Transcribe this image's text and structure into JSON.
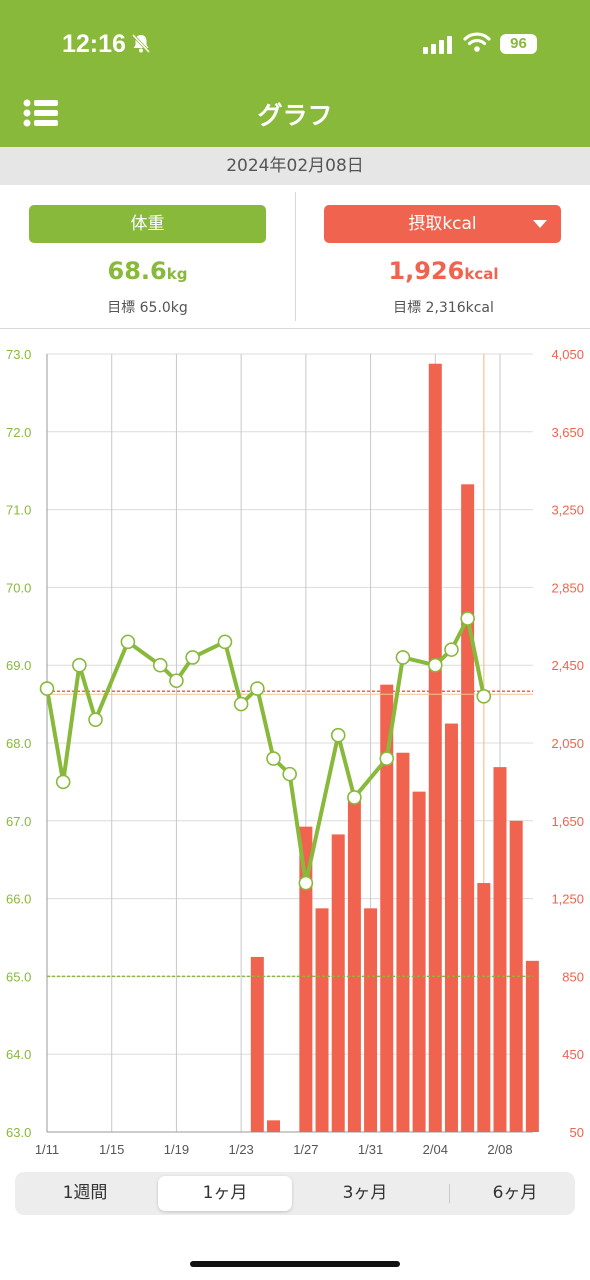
{
  "status_bar": {
    "time": "12:16",
    "battery": "96"
  },
  "header": {
    "title": "グラフ"
  },
  "date": "2024年02月08日",
  "weight_panel": {
    "label": "体重",
    "value": "68.6",
    "unit": "kg",
    "target": "目標 65.0kg"
  },
  "kcal_panel": {
    "label": "摂取kcal",
    "value": "1,926",
    "unit": "kcal",
    "target": "目標 2,316kcal"
  },
  "colors": {
    "accent_green": "#88b93b",
    "accent_red": "#f0634e"
  },
  "chart_data": {
    "type": "bar+line",
    "x_tick_labels": [
      "1/11",
      "1/15",
      "1/19",
      "1/23",
      "1/27",
      "1/31",
      "2/04",
      "2/08"
    ],
    "y_left_ticks": [
      "73.0",
      "72.0",
      "71.0",
      "70.0",
      "69.0",
      "68.0",
      "67.0",
      "66.0",
      "65.0",
      "64.0",
      "63.0"
    ],
    "y_right_ticks": [
      "4,050",
      "3,650",
      "3,250",
      "2,850",
      "2,450",
      "2,050",
      "1,650",
      "1,250",
      "850",
      "450",
      "50"
    ],
    "y_left_range": [
      63.0,
      73.0
    ],
    "y_right_range": [
      50,
      4050
    ],
    "weight_target": 65.0,
    "kcal_target": 2316,
    "weight": [
      {
        "day": "1/11",
        "value": 68.7
      },
      {
        "day": "1/12",
        "value": 67.5
      },
      {
        "day": "1/13",
        "value": 69.0
      },
      {
        "day": "1/14",
        "value": 68.3
      },
      {
        "day": "1/16",
        "value": 69.3
      },
      {
        "day": "1/18",
        "value": 69.0
      },
      {
        "day": "1/19",
        "value": 68.8
      },
      {
        "day": "1/20",
        "value": 69.1
      },
      {
        "day": "1/22",
        "value": 69.3
      },
      {
        "day": "1/23",
        "value": 68.5
      },
      {
        "day": "1/24",
        "value": 68.7
      },
      {
        "day": "1/25",
        "value": 67.8
      },
      {
        "day": "1/26",
        "value": 67.6
      },
      {
        "day": "1/27",
        "value": 66.2
      },
      {
        "day": "1/29",
        "value": 68.1
      },
      {
        "day": "1/30",
        "value": 67.3
      },
      {
        "day": "2/01",
        "value": 67.8
      },
      {
        "day": "2/02",
        "value": 69.1
      },
      {
        "day": "2/04",
        "value": 69.0
      },
      {
        "day": "2/05",
        "value": 69.2
      },
      {
        "day": "2/06",
        "value": 69.6
      },
      {
        "day": "2/07",
        "value": 68.6
      }
    ],
    "kcal": [
      {
        "day": "1/24",
        "value": 950
      },
      {
        "day": "1/25",
        "value": 110
      },
      {
        "day": "1/27",
        "value": 1620
      },
      {
        "day": "1/28",
        "value": 1200
      },
      {
        "day": "1/29",
        "value": 1580
      },
      {
        "day": "1/30",
        "value": 1760
      },
      {
        "day": "1/31",
        "value": 1200
      },
      {
        "day": "2/01",
        "value": 2350
      },
      {
        "day": "2/02",
        "value": 2000
      },
      {
        "day": "2/03",
        "value": 1800
      },
      {
        "day": "2/04",
        "value": 4000
      },
      {
        "day": "2/05",
        "value": 2150
      },
      {
        "day": "2/06",
        "value": 3380
      },
      {
        "day": "2/07",
        "value": 1330
      },
      {
        "day": "2/08",
        "value": 1926
      },
      {
        "day": "2/09",
        "value": 1650
      },
      {
        "day": "2/10",
        "value": 930
      }
    ]
  },
  "range_tabs": [
    {
      "label": "1週間",
      "active": false
    },
    {
      "label": "1ヶ月",
      "active": true
    },
    {
      "label": "3ヶ月",
      "active": false
    },
    {
      "label": "6ヶ月",
      "active": false
    }
  ]
}
